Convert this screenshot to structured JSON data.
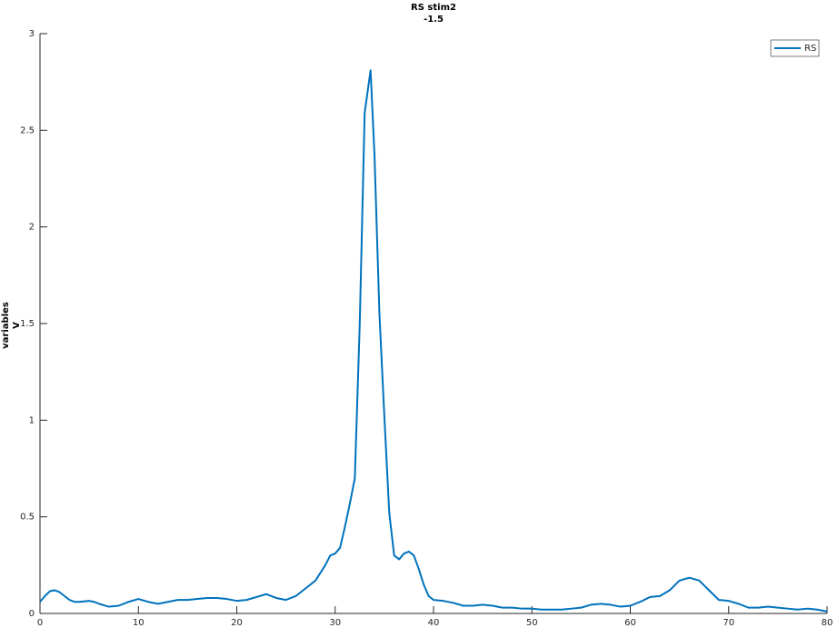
{
  "chart_data": {
    "type": "line",
    "title": [
      "RS stim2",
      "-1.5"
    ],
    "ylabel": [
      "variables",
      "V"
    ],
    "x": [
      0,
      0.5,
      1,
      1.5,
      2,
      2.5,
      3,
      3.5,
      4,
      5,
      5.5,
      6,
      7,
      8,
      9,
      10,
      11,
      12,
      13,
      14,
      15,
      16,
      17,
      18,
      19,
      20,
      21,
      22,
      23,
      24,
      25,
      26,
      27,
      28,
      28.5,
      29,
      29.5,
      30,
      30.5,
      31,
      31.5,
      32,
      32.5,
      33,
      33.6,
      34,
      34.5,
      35,
      35.5,
      36,
      36.5,
      37,
      37.5,
      38,
      38.5,
      39,
      39.5,
      40,
      41,
      42,
      43,
      44,
      45,
      46,
      47,
      48,
      49,
      50,
      51,
      52,
      53,
      54,
      55,
      56,
      57,
      58,
      59,
      60,
      61,
      62,
      63,
      64,
      65,
      66,
      67,
      68,
      69,
      70,
      71,
      72,
      73,
      74,
      75,
      76,
      77,
      78,
      79,
      80
    ],
    "series": [
      {
        "name": "RS",
        "color": "#0072bd",
        "values": [
          0.06,
          0.09,
          0.115,
          0.12,
          0.11,
          0.09,
          0.07,
          0.06,
          0.06,
          0.065,
          0.06,
          0.05,
          0.035,
          0.04,
          0.06,
          0.075,
          0.06,
          0.05,
          0.06,
          0.07,
          0.07,
          0.075,
          0.08,
          0.08,
          0.075,
          0.065,
          0.07,
          0.085,
          0.1,
          0.08,
          0.07,
          0.09,
          0.13,
          0.17,
          0.21,
          0.25,
          0.3,
          0.31,
          0.34,
          0.45,
          0.57,
          0.7,
          1.5,
          2.59,
          2.81,
          2.37,
          1.55,
          1.02,
          0.52,
          0.3,
          0.28,
          0.31,
          0.32,
          0.3,
          0.23,
          0.15,
          0.09,
          0.07,
          0.065,
          0.055,
          0.04,
          0.04,
          0.045,
          0.04,
          0.03,
          0.03,
          0.025,
          0.025,
          0.02,
          0.02,
          0.02,
          0.025,
          0.03,
          0.045,
          0.05,
          0.045,
          0.035,
          0.04,
          0.06,
          0.085,
          0.09,
          0.12,
          0.17,
          0.185,
          0.17,
          0.12,
          0.07,
          0.065,
          0.05,
          0.03,
          0.03,
          0.035,
          0.03,
          0.025,
          0.02,
          0.025,
          0.02,
          0.01
        ]
      }
    ],
    "xlim": [
      0,
      80
    ],
    "xticks": [
      0,
      10,
      20,
      30,
      40,
      50,
      60,
      70,
      80
    ],
    "ylim": [
      0,
      3
    ],
    "yticks": [
      0,
      0.5,
      1,
      1.5,
      2,
      2.5,
      3
    ],
    "legend": "top-right"
  }
}
